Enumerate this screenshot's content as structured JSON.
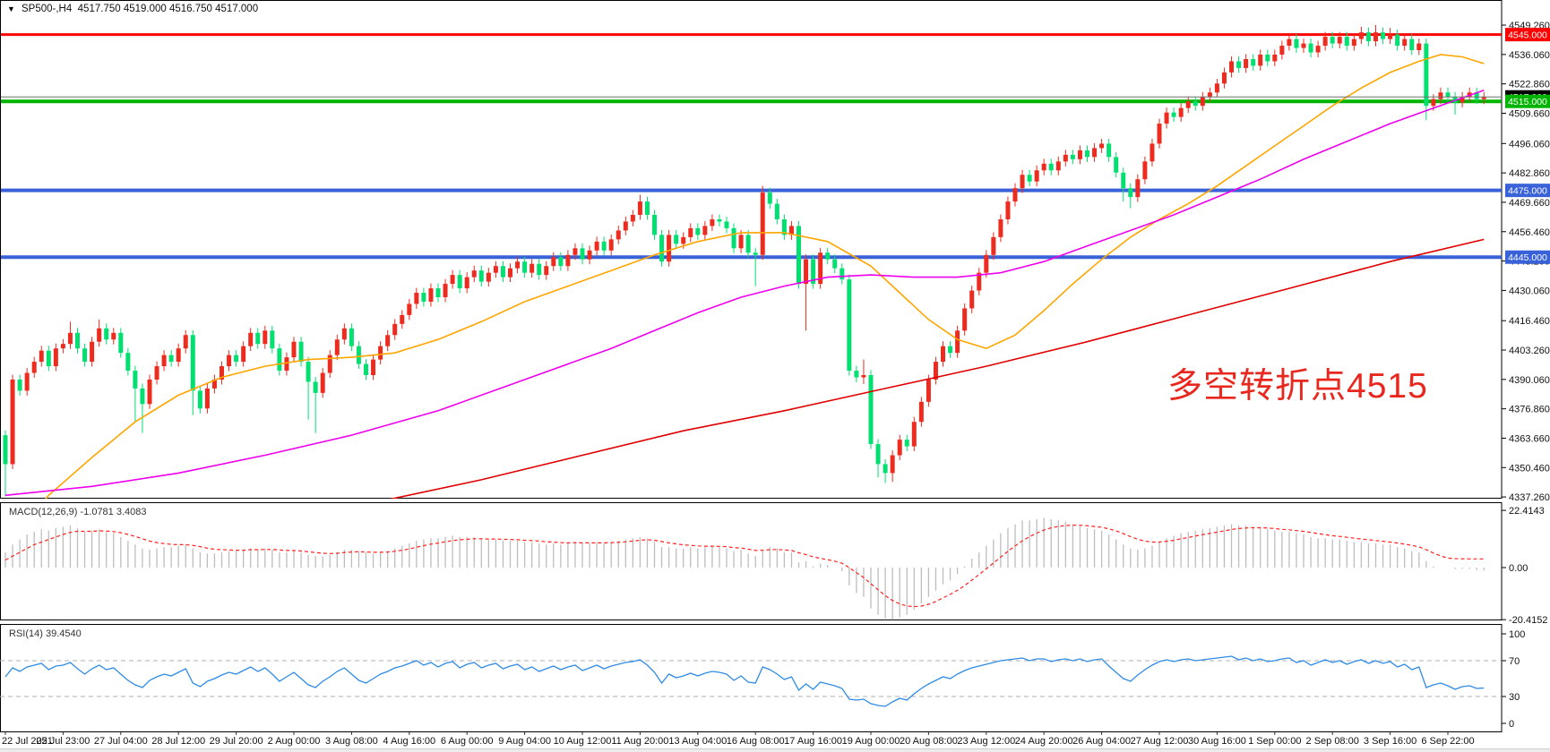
{
  "header": {
    "symbol_period": "SP500-,H4",
    "ohlc": "4517.750 4519.000 4516.750 4517.000",
    "collapse_icon": "down-triangle"
  },
  "annotation": {
    "text": "多空转折点4515",
    "color": "#e8281e"
  },
  "indicators": {
    "macd_name": "MACD(12,26,9)",
    "macd_values": "-1.0781 3.4083",
    "rsi_name": "RSI(14)",
    "rsi_value": "39.4540"
  },
  "axis": {
    "main_labels": [
      [
        "4549.260",
        4549.26
      ],
      [
        "4536.060",
        4536.06
      ],
      [
        "4522.860",
        4522.86
      ],
      [
        "4509.660",
        4509.66
      ],
      [
        "4496.060",
        4496.06
      ],
      [
        "4482.860",
        4482.86
      ],
      [
        "4469.660",
        4469.66
      ],
      [
        "4456.460",
        4456.46
      ],
      [
        "4443.260",
        4443.26
      ],
      [
        "4430.060",
        4430.06
      ],
      [
        "4416.460",
        4416.46
      ],
      [
        "4403.260",
        4403.26
      ],
      [
        "4390.060",
        4390.06
      ],
      [
        "4376.860",
        4376.86
      ],
      [
        "4363.660",
        4363.66
      ],
      [
        "4350.460",
        4350.46
      ],
      [
        "4337.260",
        4337.26
      ]
    ],
    "macd_labels": [
      [
        "22.4143",
        22.4143
      ],
      [
        "0.00",
        0
      ],
      [
        "-20.4152",
        -20.4152
      ]
    ],
    "rsi_labels": [
      [
        "100",
        100
      ],
      [
        "70",
        70
      ],
      [
        "30",
        30
      ],
      [
        "0",
        0
      ]
    ],
    "x_labels": [
      "22 Jul 2021",
      "25 Jul 23:00",
      "27 Jul 04:00",
      "28 Jul 12:00",
      "29 Jul 20:00",
      "2 Aug 00:00",
      "3 Aug 08:00",
      "4 Aug 16:00",
      "6 Aug 00:00",
      "9 Aug 04:00",
      "10 Aug 12:00",
      "11 Aug 20:00",
      "13 Aug 04:00",
      "16 Aug 08:00",
      "17 Aug 16:00",
      "19 Aug 00:00",
      "20 Aug 08:00",
      "23 Aug 12:00",
      "24 Aug 20:00",
      "26 Aug 04:00",
      "27 Aug 12:00",
      "30 Aug 16:00",
      "1 Sep 00:00",
      "2 Sep 08:00",
      "3 Sep 16:00",
      "6 Sep 22:00"
    ]
  },
  "levels": [
    {
      "price": 4545.0,
      "color": "#ff0000",
      "thickness": 3,
      "badge": "4545.000",
      "badge_bg": "#ff0000",
      "z": "back"
    },
    {
      "price": 4475.0,
      "color": "#3a62d8",
      "thickness": 4,
      "badge": "4475.000",
      "badge_bg": "#3a62d8",
      "z": "back"
    },
    {
      "price": 4445.0,
      "color": "#3a62d8",
      "thickness": 4,
      "badge": "4445.000",
      "badge_bg": "#3a62d8",
      "z": "back"
    },
    {
      "price": 4517.0,
      "color": "#707070",
      "thickness": 1,
      "badge": "4517.000",
      "badge_bg": "#000000",
      "z": "front"
    },
    {
      "price": 4515.0,
      "color": "#00b400",
      "thickness": 4,
      "badge": "4515.000",
      "badge_bg": "#00b400",
      "z": "back"
    }
  ],
  "chart_data": {
    "type": "candlestick",
    "timeframe": "H4",
    "symbol": "SP500-",
    "up_color": "#ed2b1e",
    "down_color": "#00e070",
    "price_range": {
      "max": 4553.3,
      "min": 4336.9
    },
    "first_open": 4365,
    "closes": [
      4352,
      4390,
      4385,
      4393,
      4398,
      4403,
      4396,
      4404,
      4406,
      4411,
      4404,
      4398,
      4407,
      4413,
      4408,
      4411,
      4402,
      4394,
      4386,
      4379,
      4390,
      4396,
      4401,
      4398,
      4404,
      4410,
      4385,
      4377,
      4386,
      4390,
      4396,
      4401,
      4398,
      4405,
      4411,
      4406,
      4412,
      4404,
      4394,
      4400,
      4407,
      4398,
      4389,
      4384,
      4393,
      4401,
      4408,
      4413,
      4405,
      4397,
      4392,
      4399,
      4405,
      4410,
      4415,
      4419,
      4424,
      4429,
      4425,
      4431,
      4427,
      4433,
      4437,
      4431,
      4436,
      4439,
      4434,
      4438,
      4441,
      4436,
      4440,
      4443,
      4438,
      4442,
      4437,
      4441,
      4445,
      4441,
      4446,
      4449,
      4444,
      4448,
      4452,
      4448,
      4453,
      4457,
      4461,
      4464,
      4470,
      4464,
      4455,
      4443,
      4455,
      4451,
      4454,
      4458,
      4455,
      4459,
      4462,
      4461,
      4458,
      4449,
      4455,
      4447,
      4446,
      4474,
      4469,
      4462,
      4455,
      4459,
      4433,
      4444,
      4433,
      4447,
      4444,
      4440,
      4435,
      4394,
      4391,
      4392,
      4361,
      4352,
      4348,
      4356,
      4363,
      4360,
      4371,
      4380,
      4390,
      4398,
      4405,
      4402,
      4412,
      4422,
      4430,
      4438,
      4446,
      4454,
      4462,
      4470,
      4476,
      4482,
      4479,
      4484,
      4487,
      4484,
      4488,
      4491,
      4489,
      4493,
      4490,
      4494,
      4496,
      4490,
      4483,
      4476,
      4472,
      4480,
      4488,
      4496,
      4505,
      4510,
      4508,
      4512,
      4515,
      4513,
      4517,
      4519,
      4523,
      4528,
      4533,
      4530,
      4534,
      4531,
      4536,
      4533,
      4536,
      4540,
      4543,
      4539,
      4541,
      4537,
      4540,
      4544,
      4541,
      4544,
      4540,
      4543,
      4546,
      4542,
      4546,
      4543,
      4545,
      4540,
      4543,
      4538,
      4541,
      4513,
      4516,
      4519,
      4517,
      4514.5,
      4517,
      4519,
      4516,
      4517
    ],
    "wick_overrides": {
      "0": [
        null,
        4337.5
      ],
      "9": [
        4416,
        null
      ],
      "13": [
        4417,
        null
      ],
      "18": [
        null,
        4371
      ],
      "19": [
        null,
        4366
      ],
      "26": [
        null,
        4374
      ],
      "42": [
        null,
        4372
      ],
      "43": [
        null,
        4366
      ],
      "88": [
        4473,
        null
      ],
      "104": [
        null,
        4432
      ],
      "105": [
        4477,
        null
      ],
      "111": [
        null,
        4412
      ],
      "119": [
        4399,
        4388
      ],
      "121": [
        null,
        4346
      ],
      "122": [
        null,
        4343.5
      ],
      "123": [
        null,
        4344
      ],
      "155": [
        null,
        4470
      ],
      "156": [
        null,
        4467
      ],
      "188": [
        4548.5,
        null
      ],
      "190": [
        4549.26,
        null
      ],
      "192": [
        4548,
        null
      ],
      "197": [
        null,
        4506.5
      ],
      "201": [
        null,
        4509
      ]
    },
    "ma_fast": {
      "name": "MA-fast",
      "color": "#ffa500",
      "points": [
        [
          0,
          4315
        ],
        [
          6,
          4338
        ],
        [
          12,
          4355
        ],
        [
          18,
          4371
        ],
        [
          24,
          4383
        ],
        [
          30,
          4391
        ],
        [
          36,
          4396
        ],
        [
          42,
          4399
        ],
        [
          48,
          4400
        ],
        [
          54,
          4402
        ],
        [
          60,
          4408
        ],
        [
          66,
          4416
        ],
        [
          72,
          4425
        ],
        [
          78,
          4432
        ],
        [
          84,
          4439
        ],
        [
          90,
          4446
        ],
        [
          96,
          4452
        ],
        [
          102,
          4456
        ],
        [
          108,
          4456
        ],
        [
          114,
          4452
        ],
        [
          120,
          4441
        ],
        [
          124,
          4429
        ],
        [
          128,
          4417
        ],
        [
          132,
          4408
        ],
        [
          136,
          4404
        ],
        [
          140,
          4410
        ],
        [
          144,
          4421
        ],
        [
          148,
          4433
        ],
        [
          152,
          4444
        ],
        [
          156,
          4454
        ],
        [
          160,
          4462
        ],
        [
          164,
          4469
        ],
        [
          168,
          4477
        ],
        [
          172,
          4486
        ],
        [
          176,
          4495
        ],
        [
          180,
          4504
        ],
        [
          184,
          4513
        ],
        [
          188,
          4521
        ],
        [
          192,
          4528
        ],
        [
          196,
          4533
        ],
        [
          199,
          4536
        ],
        [
          202,
          4535
        ],
        [
          205,
          4532
        ]
      ]
    },
    "ma_mid": {
      "name": "MA-mid",
      "color": "#ee00ee",
      "points": [
        [
          0,
          4338
        ],
        [
          12,
          4342
        ],
        [
          24,
          4348
        ],
        [
          36,
          4356
        ],
        [
          48,
          4365
        ],
        [
          60,
          4376
        ],
        [
          72,
          4390
        ],
        [
          84,
          4404
        ],
        [
          90,
          4412
        ],
        [
          96,
          4420
        ],
        [
          102,
          4427
        ],
        [
          108,
          4432
        ],
        [
          114,
          4436
        ],
        [
          120,
          4437
        ],
        [
          126,
          4436
        ],
        [
          132,
          4436
        ],
        [
          138,
          4438
        ],
        [
          144,
          4443
        ],
        [
          150,
          4450
        ],
        [
          156,
          4457
        ],
        [
          162,
          4464
        ],
        [
          168,
          4472
        ],
        [
          174,
          4480
        ],
        [
          180,
          4489
        ],
        [
          186,
          4497
        ],
        [
          192,
          4505
        ],
        [
          198,
          4512
        ],
        [
          205,
          4520
        ]
      ]
    },
    "ma_slow": {
      "name": "MA-slow",
      "color": "#e00000",
      "points": [
        [
          53,
          4336
        ],
        [
          66,
          4345
        ],
        [
          80,
          4356
        ],
        [
          94,
          4367
        ],
        [
          108,
          4376
        ],
        [
          122,
          4386
        ],
        [
          136,
          4396
        ],
        [
          150,
          4407
        ],
        [
          164,
          4419
        ],
        [
          178,
          4431
        ],
        [
          192,
          4443
        ],
        [
          205,
          4453
        ]
      ]
    },
    "macd": {
      "range": {
        "max": 22.4143,
        "min": -20.4152
      },
      "histogram_color": "#bdbdbd",
      "signal_color": "#ff2020",
      "histogram": [
        6,
        9,
        11,
        13,
        14,
        15,
        14.5,
        15.5,
        16,
        16.5,
        15.5,
        14,
        14.5,
        15,
        14,
        13.5,
        12,
        10.5,
        9,
        7.5,
        7,
        7.5,
        8,
        8,
        8.5,
        9,
        7.5,
        6,
        5.5,
        5.5,
        6,
        6.5,
        6.5,
        7,
        7.5,
        7,
        7.5,
        7,
        6,
        6,
        6.5,
        6,
        5,
        4.5,
        4.5,
        5,
        6,
        7,
        7,
        6.5,
        6,
        5.5,
        6,
        6.5,
        7.5,
        8.5,
        9.5,
        10.5,
        11,
        11.5,
        11.5,
        12,
        12.5,
        12,
        12,
        12,
        11.5,
        11,
        11,
        10.5,
        10.5,
        10.5,
        10,
        10,
        9.5,
        9,
        9.5,
        9,
        9.5,
        10,
        9.5,
        9.5,
        10,
        9.5,
        10,
        10.5,
        11,
        11.5,
        12,
        11.5,
        10,
        8,
        8,
        7.5,
        7.5,
        8,
        7.5,
        8,
        8.5,
        8,
        7.5,
        6.5,
        7,
        5.5,
        4.5,
        7,
        8,
        7.5,
        6,
        6,
        2,
        2.5,
        0.5,
        1.5,
        1,
        0,
        -1.5,
        -7,
        -10,
        -11.5,
        -16,
        -18.5,
        -20,
        -20.4,
        -19.5,
        -18.5,
        -16.5,
        -14,
        -11.5,
        -9,
        -6.5,
        -5,
        -2.5,
        0.5,
        3.5,
        6,
        8.5,
        11,
        13.5,
        15.5,
        17,
        18.5,
        18.5,
        19,
        19.5,
        19,
        18.5,
        18,
        17,
        16.5,
        15.5,
        15,
        14.5,
        13,
        11,
        9,
        7.5,
        7,
        7.5,
        8.5,
        10,
        11.5,
        12.5,
        13.5,
        14,
        14.5,
        15,
        15.5,
        16,
        16.5,
        17,
        16.5,
        16.5,
        16,
        15.5,
        15,
        14.5,
        14,
        14,
        13.5,
        13,
        12,
        11.5,
        11.5,
        11,
        11,
        10.5,
        10,
        10,
        9.5,
        9.5,
        9,
        9,
        8,
        7.5,
        6.5,
        6,
        2.5,
        0.5,
        0,
        0,
        -0.5,
        -0.5,
        -0.5,
        -1,
        -1.0781
      ],
      "signal": [
        3,
        4.5,
        6,
        7.5,
        9,
        10,
        11,
        12,
        13,
        13.8,
        14.2,
        14.2,
        14.2,
        14.4,
        14.3,
        14.1,
        13.7,
        13,
        12.2,
        11.3,
        10.4,
        9.8,
        9.4,
        9.1,
        9,
        9,
        8.7,
        8.2,
        7.6,
        7.2,
        7,
        6.9,
        6.8,
        6.8,
        7,
        7,
        7.1,
        7.1,
        6.9,
        6.7,
        6.7,
        6.5,
        6.2,
        5.9,
        5.6,
        5.5,
        5.6,
        5.9,
        6.1,
        6.2,
        6.1,
        6,
        6,
        6.1,
        6.4,
        6.8,
        7.3,
        8,
        8.6,
        9.2,
        9.6,
        10.1,
        10.6,
        10.9,
        11.1,
        11.3,
        11.3,
        11.2,
        11.2,
        11.1,
        11,
        10.9,
        10.7,
        10.6,
        10.4,
        10.1,
        10,
        9.8,
        9.7,
        9.8,
        9.7,
        9.7,
        9.7,
        9.7,
        9.8,
        9.9,
        10.1,
        10.4,
        10.7,
        10.9,
        10.7,
        10.2,
        9.7,
        9.3,
        8.9,
        8.7,
        8.5,
        8.4,
        8.4,
        8.3,
        8.2,
        7.8,
        7.7,
        7.2,
        6.7,
        6.8,
        7,
        7.1,
        6.9,
        6.7,
        5.8,
        5.1,
        4.2,
        3.6,
        3.1,
        2.5,
        1.7,
        0,
        -2,
        -3.9,
        -6.3,
        -8.7,
        -11,
        -12.9,
        -14.2,
        -15.1,
        -15.3,
        -15.1,
        -14.4,
        -13.3,
        -11.9,
        -10.5,
        -8.9,
        -7,
        -4.9,
        -2.7,
        -0.5,
        1.8,
        4.1,
        6.4,
        8.5,
        10.5,
        12.1,
        13.5,
        14.7,
        15.6,
        16.1,
        16.5,
        16.6,
        16.6,
        16.4,
        16.1,
        15.8,
        15.2,
        14.4,
        13.3,
        12.1,
        11.1,
        10.4,
        10,
        10,
        10.3,
        10.7,
        11.3,
        11.8,
        12.4,
        12.9,
        13.4,
        13.9,
        14.4,
        14.9,
        15.3,
        15.5,
        15.6,
        15.6,
        15.5,
        15.3,
        15,
        14.8,
        14.5,
        14.2,
        13.8,
        13.3,
        12.9,
        12.5,
        12.2,
        11.9,
        11.5,
        11.2,
        10.9,
        10.6,
        10.3,
        10,
        9.6,
        9.2,
        8.7,
        8.1,
        7,
        5.7,
        4.6,
        3.7,
        3.5,
        3.45,
        3.42,
        3.41,
        3.41
      ]
    },
    "rsi": {
      "color": "#2e8be6",
      "levels": [
        70,
        30
      ],
      "values": [
        52,
        62,
        58,
        63,
        65,
        67,
        60,
        64,
        65,
        68,
        61,
        55,
        61,
        65,
        60,
        62,
        55,
        48,
        43,
        40,
        48,
        52,
        55,
        53,
        57,
        61,
        45,
        41,
        47,
        50,
        54,
        57,
        55,
        59,
        63,
        58,
        62,
        55,
        47,
        52,
        57,
        50,
        43,
        40,
        47,
        52,
        58,
        62,
        55,
        48,
        45,
        50,
        55,
        58,
        62,
        64,
        67,
        70,
        65,
        68,
        63,
        67,
        69,
        62,
        66,
        68,
        62,
        65,
        67,
        61,
        64,
        66,
        60,
        63,
        58,
        61,
        64,
        60,
        63,
        65,
        59,
        62,
        65,
        61,
        64,
        66,
        68,
        69,
        71,
        65,
        57,
        45,
        55,
        51,
        53,
        56,
        53,
        56,
        58,
        57,
        55,
        48,
        53,
        46,
        45,
        63,
        60,
        55,
        49,
        52,
        37,
        44,
        38,
        46,
        44,
        42,
        39,
        27,
        26,
        27,
        22,
        20,
        19,
        24,
        28,
        26,
        33,
        39,
        44,
        48,
        52,
        50,
        55,
        59,
        62,
        64,
        66,
        68,
        70,
        71,
        72,
        73,
        70,
        72,
        72,
        69,
        71,
        72,
        70,
        72,
        69,
        71,
        72,
        64,
        57,
        50,
        47,
        54,
        60,
        65,
        69,
        71,
        69,
        71,
        72,
        70,
        71,
        72,
        73,
        74,
        75,
        71,
        73,
        70,
        72,
        69,
        70,
        72,
        73,
        68,
        70,
        65,
        68,
        71,
        68,
        70,
        66,
        69,
        71,
        67,
        70,
        67,
        69,
        63,
        66,
        60,
        63,
        40,
        43,
        45,
        42,
        38,
        41,
        42,
        39,
        39.454
      ]
    }
  }
}
